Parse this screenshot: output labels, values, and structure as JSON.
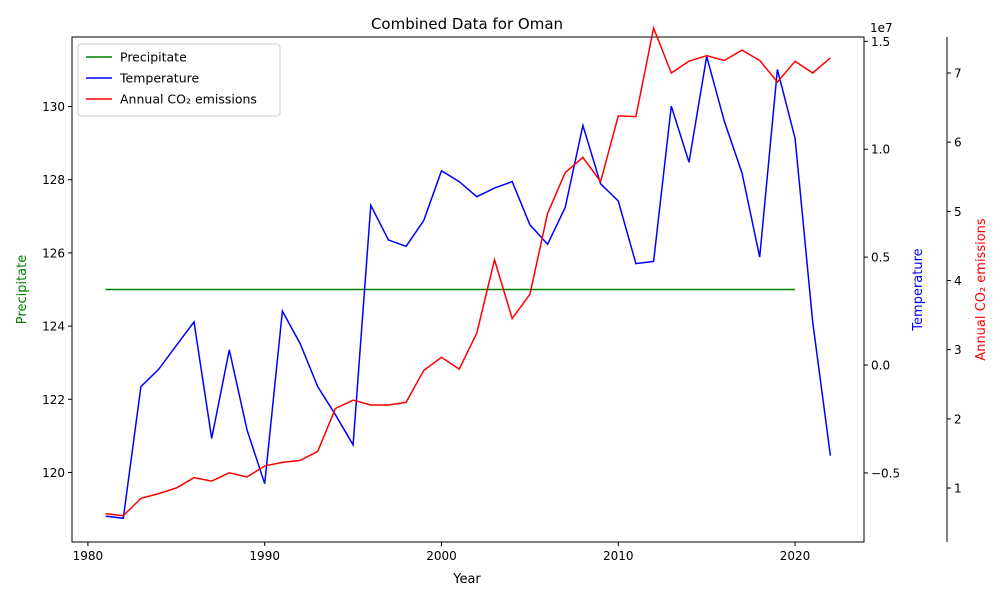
{
  "chart_data": {
    "type": "line",
    "title": "Combined Data for Oman",
    "xlabel": "Year",
    "x_ticks": [
      1980,
      1990,
      2000,
      2010,
      2020
    ],
    "xlim": [
      1979.1,
      2023.9
    ],
    "axes": [
      {
        "id": "precip",
        "label": "Precipitate",
        "color": "#008000",
        "side": "left",
        "ylim": [
          118.1,
          131.9
        ],
        "ticks": [
          120,
          122,
          124,
          126,
          128,
          130
        ],
        "tick_labels": [
          "120",
          "122",
          "124",
          "126",
          "128",
          "130"
        ]
      },
      {
        "id": "temp",
        "label": "Temperature",
        "color": "#0000ff",
        "side": "right",
        "ylim": [
          -0.82,
          1.52
        ],
        "ticks": [
          -0.5,
          0.0,
          0.5,
          1.0,
          1.5
        ],
        "tick_labels": [
          "−0.5",
          "0.0",
          "0.5",
          "1.0",
          "1.5"
        ]
      },
      {
        "id": "co2",
        "label": "Annual CO₂ emissions",
        "color": "#ff0000",
        "side": "right-offset",
        "ylim": [
          0.22,
          7.52
        ],
        "ticks": [
          1,
          2,
          3,
          4,
          5,
          6,
          7
        ],
        "tick_labels": [
          "1",
          "2",
          "3",
          "4",
          "5",
          "6",
          "7"
        ],
        "scale_label": "1e7"
      }
    ],
    "series": [
      {
        "name": "Precipitate",
        "axis": "precip",
        "color": "#008000",
        "x": [
          1981,
          1982,
          1983,
          1984,
          1985,
          1986,
          1987,
          1988,
          1989,
          1990,
          1991,
          1992,
          1993,
          1994,
          1995,
          1996,
          1997,
          1998,
          1999,
          2000,
          2001,
          2002,
          2003,
          2004,
          2005,
          2006,
          2007,
          2008,
          2009,
          2010,
          2011,
          2012,
          2013,
          2014,
          2015,
          2016,
          2017,
          2018,
          2019,
          2020
        ],
        "y": [
          125,
          125,
          125,
          125,
          125,
          125,
          125,
          125,
          125,
          125,
          125,
          125,
          125,
          125,
          125,
          125,
          125,
          125,
          125,
          125,
          125,
          125,
          125,
          125,
          125,
          125,
          125,
          125,
          125,
          125,
          125,
          125,
          125,
          125,
          125,
          125,
          125,
          125,
          125,
          125
        ]
      },
      {
        "name": "Temperature",
        "axis": "temp",
        "color": "#0000ff",
        "x": [
          1981,
          1982,
          1983,
          1984,
          1985,
          1986,
          1987,
          1988,
          1989,
          1990,
          1991,
          1992,
          1993,
          1994,
          1995,
          1996,
          1997,
          1998,
          1999,
          2000,
          2001,
          2002,
          2003,
          2004,
          2005,
          2006,
          2007,
          2008,
          2009,
          2010,
          2011,
          2012,
          2013,
          2014,
          2015,
          2016,
          2017,
          2018,
          2019,
          2020,
          2021,
          2022
        ],
        "y": [
          -0.7,
          -0.71,
          -0.1,
          -0.02,
          0.09,
          0.2,
          -0.34,
          0.07,
          -0.3,
          -0.55,
          0.25,
          0.1,
          -0.1,
          -0.23,
          -0.37,
          0.74,
          0.58,
          0.55,
          0.67,
          0.9,
          0.85,
          0.78,
          0.82,
          0.85,
          0.65,
          0.56,
          0.73,
          1.11,
          0.84,
          0.76,
          0.47,
          0.48,
          1.2,
          0.94,
          1.43,
          1.13,
          0.89,
          0.5,
          1.37,
          1.05,
          0.2,
          -0.42
        ]
      },
      {
        "name": "Annual CO₂ emissions",
        "axis": "co2",
        "color": "#ff0000",
        "x": [
          1981,
          1982,
          1983,
          1984,
          1985,
          1986,
          1987,
          1988,
          1989,
          1990,
          1991,
          1992,
          1993,
          1994,
          1995,
          1996,
          1997,
          1998,
          1999,
          2000,
          2001,
          2002,
          2003,
          2004,
          2005,
          2006,
          2007,
          2008,
          2009,
          2010,
          2011,
          2012,
          2013,
          2014,
          2015,
          2016,
          2017,
          2018,
          2019,
          2020,
          2021,
          2022
        ],
        "y": [
          0.63,
          0.6,
          0.85,
          0.92,
          1.0,
          1.15,
          1.1,
          1.22,
          1.16,
          1.32,
          1.37,
          1.4,
          1.53,
          2.15,
          2.27,
          2.2,
          2.2,
          2.24,
          2.7,
          2.89,
          2.72,
          3.24,
          4.3,
          3.45,
          3.8,
          4.97,
          5.56,
          5.78,
          5.43,
          6.38,
          6.37,
          7.65,
          7.0,
          7.17,
          7.25,
          7.18,
          7.33,
          7.18,
          6.87,
          7.17,
          7.0,
          7.22
        ]
      }
    ],
    "legend": {
      "placement": "top-left",
      "entries": [
        "Precipitate",
        "Temperature",
        "Annual CO₂ emissions"
      ]
    },
    "grid": false
  }
}
